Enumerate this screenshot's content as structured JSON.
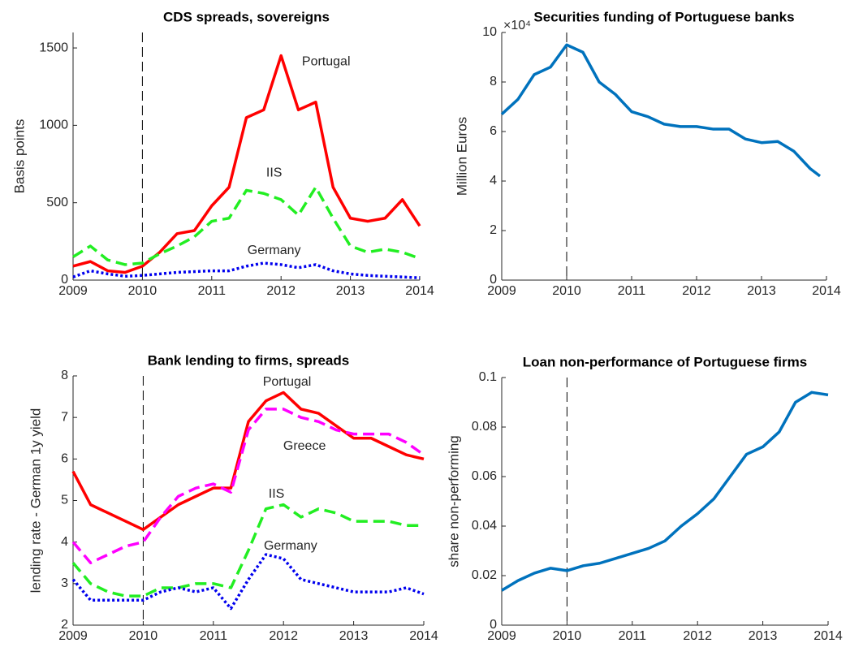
{
  "chart_data": [
    {
      "type": "line",
      "title": "CDS spreads, sovereigns",
      "y_label": "Basis points",
      "x": [
        2009,
        2009.25,
        2009.5,
        2009.75,
        2010,
        2010.25,
        2010.5,
        2010.75,
        2011,
        2011.25,
        2011.5,
        2011.75,
        2012,
        2012.25,
        2012.5,
        2012.75,
        2013,
        2013.25,
        2013.5,
        2013.75,
        2014
      ],
      "xlim": [
        2009,
        2014
      ],
      "xticks": [
        2009,
        2010,
        2011,
        2012,
        2013,
        2014
      ],
      "ylim": [
        0,
        1600
      ],
      "yticks": [
        0,
        500,
        1000,
        1500
      ],
      "vline": 2010,
      "series": [
        {
          "name": "Portugal",
          "color": "#ff0000",
          "dash": "solid",
          "values": [
            90,
            120,
            60,
            50,
            90,
            180,
            300,
            320,
            480,
            600,
            1050,
            1100,
            1450,
            1100,
            1150,
            600,
            400,
            380,
            400,
            520,
            350
          ]
        },
        {
          "name": "IIS",
          "color": "#22ee22",
          "dash": "dashed",
          "values": [
            150,
            220,
            130,
            100,
            110,
            170,
            220,
            280,
            380,
            400,
            580,
            560,
            520,
            420,
            600,
            400,
            220,
            180,
            200,
            180,
            140
          ]
        },
        {
          "name": "Germany",
          "color": "#0000ee",
          "dash": "dotted",
          "values": [
            20,
            60,
            40,
            25,
            30,
            40,
            50,
            55,
            60,
            60,
            90,
            110,
            100,
            80,
            100,
            60,
            40,
            30,
            25,
            20,
            15
          ]
        }
      ],
      "annotations": [
        {
          "text": "Portugal",
          "x": 2012.65,
          "y": 1410
        },
        {
          "text": "IIS",
          "x": 2011.9,
          "y": 690
        },
        {
          "text": "Germany",
          "x": 2011.9,
          "y": 190
        }
      ]
    },
    {
      "type": "line",
      "title": "Securities funding of Portuguese banks",
      "y_label": "Million Euros",
      "y_exponent_label": "×10⁴",
      "x": [
        2009,
        2009.25,
        2009.5,
        2009.75,
        2010,
        2010.25,
        2010.5,
        2010.75,
        2011,
        2011.25,
        2011.5,
        2011.75,
        2012,
        2012.25,
        2012.5,
        2012.75,
        2013,
        2013.25,
        2013.5,
        2013.75,
        2013.9
      ],
      "xlim": [
        2009,
        2014
      ],
      "xticks": [
        2009,
        2010,
        2011,
        2012,
        2013,
        2014
      ],
      "ylim": [
        0,
        10
      ],
      "yticks": [
        0,
        2,
        4,
        6,
        8,
        10
      ],
      "vline": 2010,
      "series": [
        {
          "color": "#0072bd",
          "dash": "solid",
          "values": [
            6.7,
            7.3,
            8.3,
            8.6,
            9.5,
            9.2,
            8.0,
            7.5,
            6.8,
            6.6,
            6.3,
            6.2,
            6.2,
            6.1,
            6.1,
            5.7,
            5.55,
            5.6,
            5.2,
            4.5,
            4.2
          ]
        }
      ]
    },
    {
      "type": "line",
      "title": "Bank lending to firms, spreads",
      "y_label": "lending rate - German 1y yield",
      "x": [
        2009,
        2009.25,
        2009.5,
        2009.75,
        2010,
        2010.25,
        2010.5,
        2010.75,
        2011,
        2011.25,
        2011.5,
        2011.75,
        2012,
        2012.25,
        2012.5,
        2012.75,
        2013,
        2013.25,
        2013.5,
        2013.75,
        2014
      ],
      "xlim": [
        2009,
        2014
      ],
      "xticks": [
        2009,
        2010,
        2011,
        2012,
        2013,
        2014
      ],
      "ylim": [
        2,
        8
      ],
      "yticks": [
        2,
        3,
        4,
        5,
        6,
        7,
        8
      ],
      "vline": 2010,
      "series": [
        {
          "name": "Portugal",
          "color": "#ff0000",
          "dash": "solid",
          "values": [
            5.7,
            4.9,
            4.7,
            4.5,
            4.3,
            4.6,
            4.9,
            5.1,
            5.3,
            5.3,
            6.9,
            7.4,
            7.6,
            7.2,
            7.1,
            6.8,
            6.5,
            6.5,
            6.3,
            6.1,
            6.0
          ]
        },
        {
          "name": "Greece",
          "color": "#ff00ff",
          "dash": "dashed",
          "values": [
            4.0,
            3.5,
            3.7,
            3.9,
            4.0,
            4.6,
            5.1,
            5.3,
            5.4,
            5.2,
            6.7,
            7.2,
            7.2,
            7.0,
            6.9,
            6.7,
            6.6,
            6.6,
            6.6,
            6.4,
            6.1
          ]
        },
        {
          "name": "IIS",
          "color": "#22ee22",
          "dash": "dashed",
          "values": [
            3.5,
            3.0,
            2.8,
            2.7,
            2.7,
            2.9,
            2.9,
            3.0,
            3.0,
            2.9,
            3.8,
            4.8,
            4.9,
            4.6,
            4.8,
            4.7,
            4.5,
            4.5,
            4.5,
            4.4,
            4.4
          ]
        },
        {
          "name": "Germany",
          "color": "#0000ee",
          "dash": "dotted",
          "values": [
            3.1,
            2.6,
            2.6,
            2.6,
            2.6,
            2.8,
            2.9,
            2.8,
            2.9,
            2.4,
            3.1,
            3.7,
            3.6,
            3.1,
            3.0,
            2.9,
            2.8,
            2.8,
            2.8,
            2.9,
            2.75
          ]
        }
      ],
      "annotations": [
        {
          "text": "Portugal",
          "x": 2012.05,
          "y": 7.85
        },
        {
          "text": "Greece",
          "x": 2012.3,
          "y": 6.3
        },
        {
          "text": "IIS",
          "x": 2011.9,
          "y": 5.15
        },
        {
          "text": "Germany",
          "x": 2012.1,
          "y": 3.9
        }
      ]
    },
    {
      "type": "line",
      "title": "Loan non-performance of Portuguese firms",
      "y_label": "share non-performing",
      "x": [
        2009,
        2009.25,
        2009.5,
        2009.75,
        2010,
        2010.25,
        2010.5,
        2010.75,
        2011,
        2011.25,
        2011.5,
        2011.75,
        2012,
        2012.25,
        2012.5,
        2012.75,
        2013,
        2013.25,
        2013.5,
        2013.75,
        2014
      ],
      "xlim": [
        2009,
        2014
      ],
      "xticks": [
        2009,
        2010,
        2011,
        2012,
        2013,
        2014
      ],
      "ylim": [
        0,
        0.1
      ],
      "yticks": [
        0,
        0.02,
        0.04,
        0.06,
        0.08,
        0.1
      ],
      "vline": 2010,
      "series": [
        {
          "color": "#0072bd",
          "dash": "solid",
          "values": [
            0.014,
            0.018,
            0.021,
            0.023,
            0.022,
            0.024,
            0.025,
            0.027,
            0.029,
            0.031,
            0.034,
            0.04,
            0.045,
            0.051,
            0.06,
            0.069,
            0.072,
            0.078,
            0.09,
            0.094,
            0.093
          ]
        }
      ]
    }
  ]
}
